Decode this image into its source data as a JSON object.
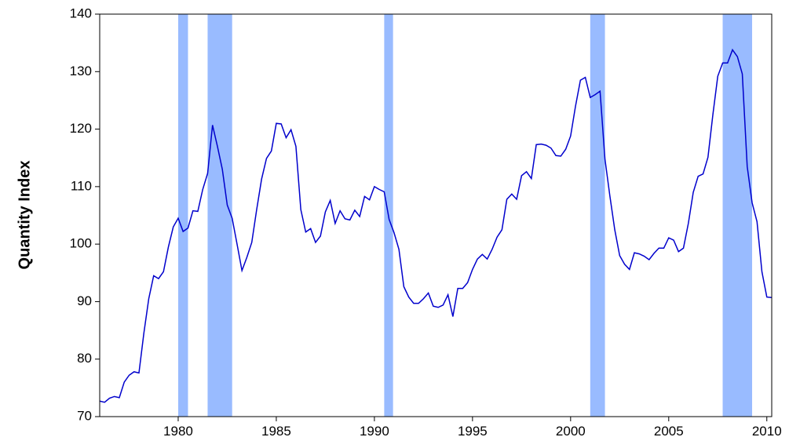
{
  "chart_data": {
    "type": "line",
    "y_label": "Quantity Index",
    "xlim": [
      1976,
      2010.25
    ],
    "xticks": [
      1980,
      1985,
      1990,
      1995,
      2000,
      2005,
      2010
    ],
    "ylim": [
      70,
      140
    ],
    "yticks": [
      70,
      80,
      90,
      100,
      110,
      120,
      130,
      140
    ],
    "grid": false,
    "shade_color": "#99bbff",
    "shaded_ranges": [
      [
        1980,
        1980.5
      ],
      [
        1981.5,
        1982.75
      ],
      [
        1990.5,
        1990.95
      ],
      [
        2001,
        2001.75
      ],
      [
        2007.75,
        2009.25
      ]
    ],
    "x": [
      1976,
      1976.25,
      1976.5,
      1976.75,
      1977,
      1977.25,
      1977.5,
      1977.75,
      1978,
      1978.25,
      1978.5,
      1978.75,
      1979,
      1979.25,
      1979.5,
      1979.75,
      1980,
      1980.25,
      1980.5,
      1980.75,
      1981,
      1981.25,
      1981.5,
      1981.75,
      1982,
      1982.25,
      1982.5,
      1982.75,
      1983,
      1983.25,
      1983.5,
      1983.75,
      1984,
      1984.25,
      1984.5,
      1984.75,
      1985,
      1985.25,
      1985.5,
      1985.75,
      1986,
      1986.25,
      1986.5,
      1986.75,
      1987,
      1987.25,
      1987.5,
      1987.75,
      1988,
      1988.25,
      1988.5,
      1988.75,
      1989,
      1989.25,
      1989.5,
      1989.75,
      1990,
      1990.25,
      1990.5,
      1990.75,
      1991,
      1991.25,
      1991.5,
      1991.75,
      1992,
      1992.25,
      1992.5,
      1992.75,
      1993,
      1993.25,
      1993.5,
      1993.75,
      1994,
      1994.25,
      1994.5,
      1994.75,
      1995,
      1995.25,
      1995.5,
      1995.75,
      1996,
      1996.25,
      1996.5,
      1996.75,
      1997,
      1997.25,
      1997.5,
      1997.75,
      1998,
      1998.25,
      1998.5,
      1998.75,
      1999,
      1999.25,
      1999.5,
      1999.75,
      2000,
      2000.25,
      2000.5,
      2000.75,
      2001,
      2001.25,
      2001.5,
      2001.75,
      2002,
      2002.25,
      2002.5,
      2002.75,
      2003,
      2003.25,
      2003.5,
      2003.75,
      2004,
      2004.25,
      2004.5,
      2004.75,
      2005,
      2005.25,
      2005.5,
      2005.75,
      2006,
      2006.25,
      2006.5,
      2006.75,
      2007,
      2007.25,
      2007.5,
      2007.75,
      2008,
      2008.25,
      2008.5,
      2008.75,
      2009,
      2009.25,
      2009.5,
      2009.75,
      2010,
      2010.25
    ],
    "series": [
      {
        "color": "#0000cc",
        "values": [
          72.7,
          72.5,
          73.2,
          73.5,
          73.3,
          76,
          77.2,
          77.8,
          77.6,
          84.5,
          90.5,
          94.5,
          94,
          95.2,
          99.5,
          103,
          104.5,
          102.2,
          102.8,
          105.8,
          105.7,
          109.5,
          112.3,
          120.7,
          117,
          113,
          106.8,
          104.5,
          100,
          95.4,
          97.7,
          100.3,
          106,
          111.3,
          114.9,
          116.2,
          121,
          120.9,
          118.5,
          119.9,
          117,
          106,
          102.1,
          102.7,
          100.3,
          101.4,
          105.6,
          107.6,
          103.6,
          105.8,
          104.4,
          104.2,
          105.9,
          104.8,
          108.3,
          107.7,
          110,
          109.5,
          109.1,
          104.3,
          102,
          99.1,
          92.6,
          90.8,
          89.7,
          89.7,
          90.5,
          91.5,
          89.2,
          89,
          89.4,
          91.2,
          87.4,
          92.3,
          92.3,
          93.3,
          95.6,
          97.4,
          98.2,
          97.4,
          99.1,
          101.2,
          102.5,
          107.8,
          108.7,
          107.8,
          111.9,
          112.6,
          111.4,
          117.3,
          117.4,
          117.2,
          116.7,
          115.4,
          115.3,
          116.5,
          118.8,
          124,
          128.5,
          129,
          125.5,
          126,
          126.6,
          114.8,
          108.4,
          102.5,
          98,
          96.5,
          95.6,
          98.5,
          98.3,
          97.9,
          97.3,
          98.4,
          99.3,
          99.3,
          101.1,
          100.7,
          98.7,
          99.3,
          103.6,
          109,
          111.8,
          112.2,
          115.1,
          122.5,
          129.2,
          131.5,
          131.5,
          133.8,
          132.6,
          129.6,
          113.5,
          107.2,
          103.9,
          95.2,
          90.8,
          90.7
        ]
      }
    ]
  }
}
